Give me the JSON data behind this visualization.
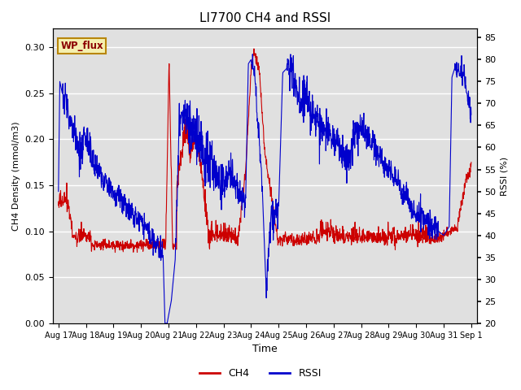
{
  "title": "LI7700 CH4 and RSSI",
  "xlabel": "Time",
  "ylabel_left": "CH4 Density (mmol/m3)",
  "ylabel_right": "RSSI (%)",
  "site_label": "WP_flux",
  "ylim_left": [
    0.0,
    0.32
  ],
  "ylim_right": [
    20,
    87
  ],
  "yticks_left": [
    0.0,
    0.05,
    0.1,
    0.15,
    0.2,
    0.25,
    0.3
  ],
  "yticks_right": [
    20,
    25,
    30,
    35,
    40,
    45,
    50,
    55,
    60,
    65,
    70,
    75,
    80,
    85
  ],
  "xtick_labels": [
    "Aug 17",
    "Aug 18",
    "Aug 19",
    "Aug 20",
    "Aug 21",
    "Aug 22",
    "Aug 23",
    "Aug 24",
    "Aug 25",
    "Aug 26",
    "Aug 27",
    "Aug 28",
    "Aug 29",
    "Aug 30",
    "Aug 31",
    "Sep 1"
  ],
  "color_ch4": "#cc0000",
  "color_rssi": "#0000cc",
  "background_color": "#e0e0e0",
  "legend_labels": [
    "CH4",
    "RSSI"
  ],
  "figsize": [
    6.4,
    4.8
  ],
  "dpi": 100
}
